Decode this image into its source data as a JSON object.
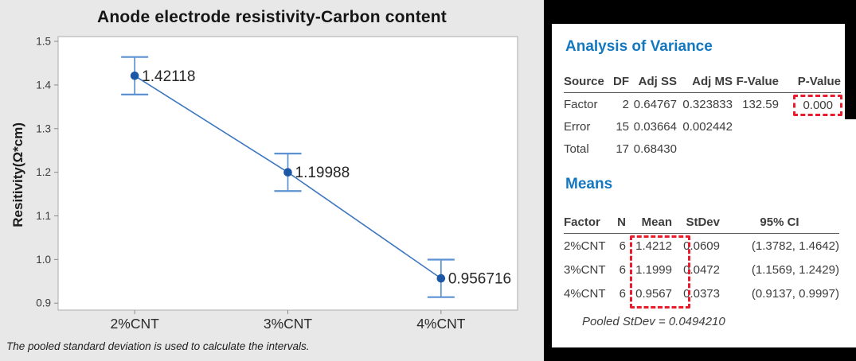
{
  "chart_data": {
    "type": "line",
    "title": "Anode electrode resistivity-Carbon content",
    "ylabel": "Resitivity(Ω*cm)",
    "xlabel": "",
    "categories": [
      "2%CNT",
      "3%CNT",
      "4%CNT"
    ],
    "values": [
      1.42118,
      1.19988,
      0.956716
    ],
    "point_labels": [
      "1.42118",
      "1.19988",
      "0.956716"
    ],
    "ci": [
      [
        1.3782,
        1.4642
      ],
      [
        1.1569,
        1.2429
      ],
      [
        0.9137,
        0.9997
      ]
    ],
    "yticks": [
      0.9,
      1.0,
      1.1,
      1.2,
      1.3,
      1.4,
      1.5
    ],
    "ylim": [
      0.884,
      1.511
    ],
    "grid": false,
    "legend": "none",
    "footnote": "The pooled standard deviation is used to calculate the intervals."
  },
  "report": {
    "anova": {
      "heading": "Analysis of Variance",
      "headers": [
        "Source",
        "DF",
        "Adj SS",
        "Adj MS",
        "F-Value",
        "P-Value"
      ],
      "rows": [
        [
          "Factor",
          "2",
          "0.64767",
          "0.323833",
          "132.59",
          "0.000"
        ],
        [
          "Error",
          "15",
          "0.03664",
          "0.002442",
          "",
          ""
        ],
        [
          "Total",
          "17",
          "0.68430",
          "",
          "",
          ""
        ]
      ]
    },
    "means": {
      "heading": "Means",
      "headers": [
        "Factor",
        "N",
        "Mean",
        "StDev",
        "95% CI"
      ],
      "rows": [
        [
          "2%CNT",
          "6",
          "1.4212",
          "0.0609",
          "(1.3782, 1.4642)"
        ],
        [
          "3%CNT",
          "6",
          "1.1999",
          "0.0472",
          "(1.1569, 1.2429)"
        ],
        [
          "4%CNT",
          "6",
          "0.9567",
          "0.0373",
          "(0.9137, 0.9997)"
        ]
      ]
    },
    "pooled_stdev_note": "Pooled StDev = 0.0494210"
  },
  "colors": {
    "chart_background": "#e8e8e8",
    "plot_background": "#ffffff",
    "plot_border": "#ababab",
    "series_line": "#3c77c0",
    "marker": "#1b57a5",
    "interval_bar": "#5c92d2",
    "section_heading": "#1478c0",
    "highlight_red": "#ea1b2d",
    "table_text": "#3d3d3d"
  }
}
